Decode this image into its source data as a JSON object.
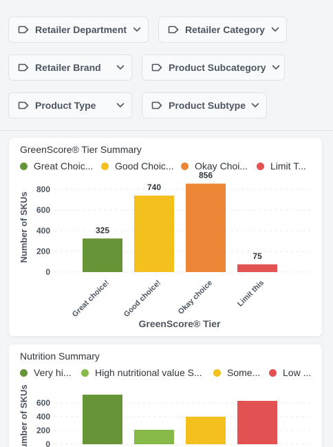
{
  "filters": [
    {
      "label": "Retailer Department"
    },
    {
      "label": "Retailer Category"
    },
    {
      "label": "Retailer Brand"
    },
    {
      "label": "Product Subcategory"
    },
    {
      "label": "Product Type"
    },
    {
      "label": "Product Subtype"
    }
  ],
  "icons": {
    "filter": "tag-icon",
    "dropdown": "chevron-down-icon"
  },
  "tier_card": {
    "title": "GreenScore® Tier Summary",
    "legend": [
      "Great Choic...",
      "Good Choic...",
      "Okay Choi...",
      "Limit T..."
    ]
  },
  "nutrition_card": {
    "title": "Nutrition Summary",
    "legend": [
      "Very hi...",
      "High nutritional value S...",
      "Some...",
      "Low ..."
    ]
  },
  "chart_data": [
    {
      "type": "bar",
      "title": "GreenScore® Tier Summary",
      "categories": [
        "Great choice!",
        "Good choice!",
        "Okay choice",
        "Limit this"
      ],
      "values": [
        325,
        740,
        856,
        75
      ],
      "colors": [
        "#679436",
        "#f4c01e",
        "#ed8537",
        "#e35252"
      ],
      "xlabel": "GreenScore® Tier",
      "ylabel": "Number of SKUs",
      "yticks": [
        0,
        200,
        400,
        600,
        800
      ],
      "ylim": [
        0,
        900
      ],
      "data_labels": true,
      "grid": true
    },
    {
      "type": "bar",
      "title": "Nutrition Summary",
      "categories": [
        "Very hi...",
        "High nutritional value S...",
        "Some...",
        "Low ..."
      ],
      "values": [
        720,
        210,
        400,
        630
      ],
      "colors": [
        "#679436",
        "#88ba4a",
        "#f4c01e",
        "#e35252"
      ],
      "ylabel": "Number of SKUs",
      "yticks": [
        0,
        200,
        400,
        600
      ],
      "ylim": [
        0,
        800
      ],
      "grid": true
    }
  ]
}
